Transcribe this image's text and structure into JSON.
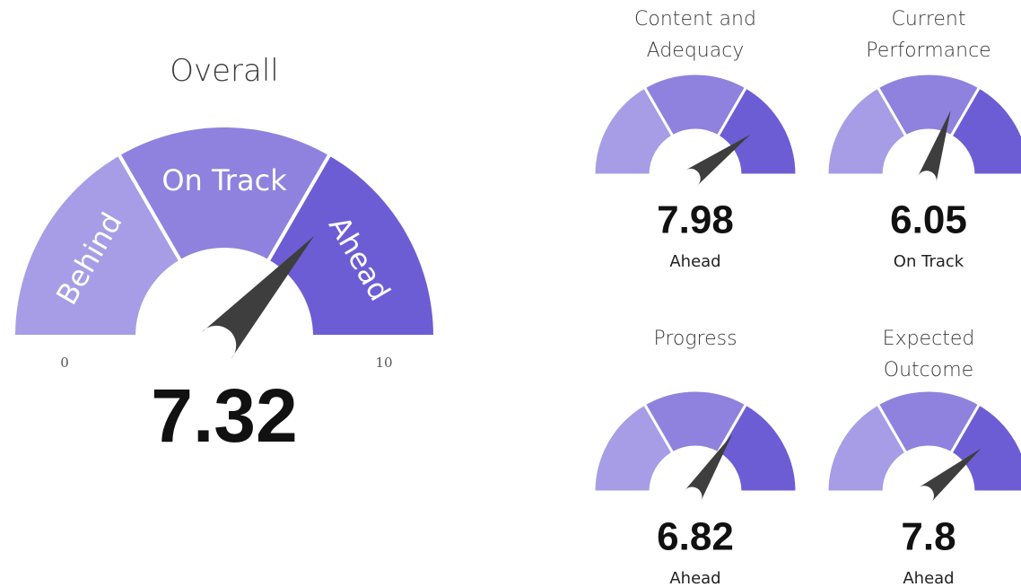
{
  "chart_data": [
    {
      "type": "gauge",
      "title": "Overall",
      "value": 7.32,
      "ylim": [
        0,
        10
      ],
      "yticks": [
        0,
        10
      ],
      "thresholds": [
        3.33,
        6.67
      ],
      "bands": [
        "Behind",
        "On Track",
        "Ahead"
      ],
      "colors": [
        "#a69de6",
        "#8e82de",
        "#6c5dd5"
      ],
      "needle_color": "#3e3e3e"
    },
    {
      "type": "gauge",
      "title": "Content and Adequacy",
      "value": 7.98,
      "status": "Ahead",
      "ylim": [
        0,
        10
      ],
      "thresholds": [
        3.33,
        6.67
      ],
      "colors": [
        "#a69de6",
        "#8e82de",
        "#6c5dd5"
      ],
      "needle_color": "#3e3e3e"
    },
    {
      "type": "gauge",
      "title": "Current Performance",
      "value": 6.05,
      "status": "On Track",
      "ylim": [
        0,
        10
      ],
      "thresholds": [
        3.33,
        6.67
      ],
      "colors": [
        "#a69de6",
        "#8e82de",
        "#6c5dd5"
      ],
      "needle_color": "#3e3e3e"
    },
    {
      "type": "gauge",
      "title": "Progress",
      "value": 6.82,
      "status": "Ahead",
      "ylim": [
        0,
        10
      ],
      "thresholds": [
        3.33,
        6.67
      ],
      "colors": [
        "#a69de6",
        "#8e82de",
        "#6c5dd5"
      ],
      "needle_color": "#3e3e3e"
    },
    {
      "type": "gauge",
      "title": "Expected Outcome",
      "value": 7.8,
      "status": "Ahead",
      "ylim": [
        0,
        10
      ],
      "thresholds": [
        3.33,
        6.67
      ],
      "colors": [
        "#a69de6",
        "#8e82de",
        "#6c5dd5"
      ],
      "needle_color": "#3e3e3e"
    }
  ]
}
